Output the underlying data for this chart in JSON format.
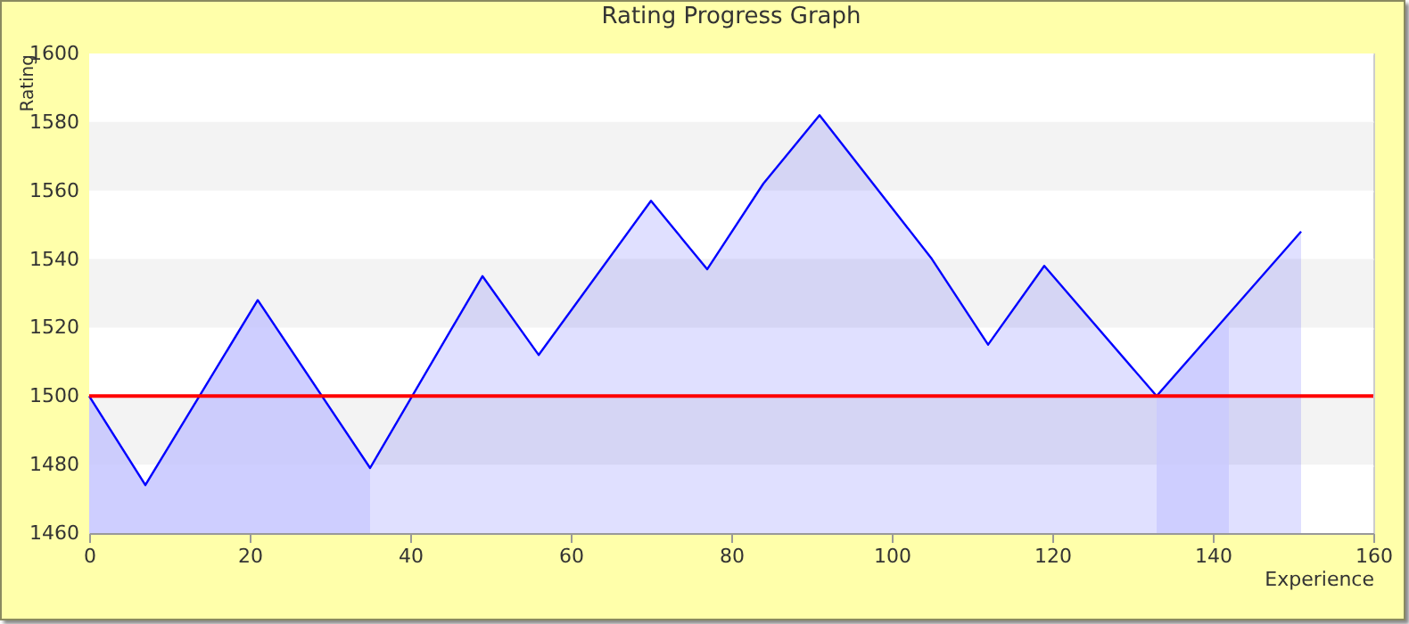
{
  "chart_data": {
    "type": "area",
    "title": "Rating Progress Graph",
    "xlabel": "Experience",
    "ylabel": "Rating",
    "x": [
      0,
      7,
      21,
      35,
      49,
      56,
      70,
      77,
      84,
      91,
      105,
      112,
      119,
      133,
      151
    ],
    "series": [
      {
        "color": "#0000ff",
        "values": [
          1500,
          1474,
          1528,
          1479,
          1535,
          1512,
          1557,
          1537,
          1562,
          1582,
          1540,
          1515,
          1538,
          1500,
          1548
        ]
      },
      {
        "color": "#c8c8ff",
        "x": [
          0,
          7,
          21,
          35
        ],
        "values": [
          1500,
          1474,
          1528,
          1479
        ]
      },
      {
        "color": "#c8c8ff",
        "x": [
          133,
          142
        ],
        "values": [
          1500,
          1524
        ]
      }
    ],
    "xlim": [
      0,
      160
    ],
    "xticks": [
      0,
      20,
      40,
      60,
      80,
      100,
      120,
      140,
      160
    ],
    "ylim": [
      1460,
      1600
    ],
    "yticks": [
      1460,
      1480,
      1500,
      1520,
      1540,
      1560,
      1580,
      1600
    ],
    "grid": "y",
    "ref_lines": [
      {
        "axis": "y",
        "value": 1500,
        "color": "#ff0000"
      }
    ]
  }
}
